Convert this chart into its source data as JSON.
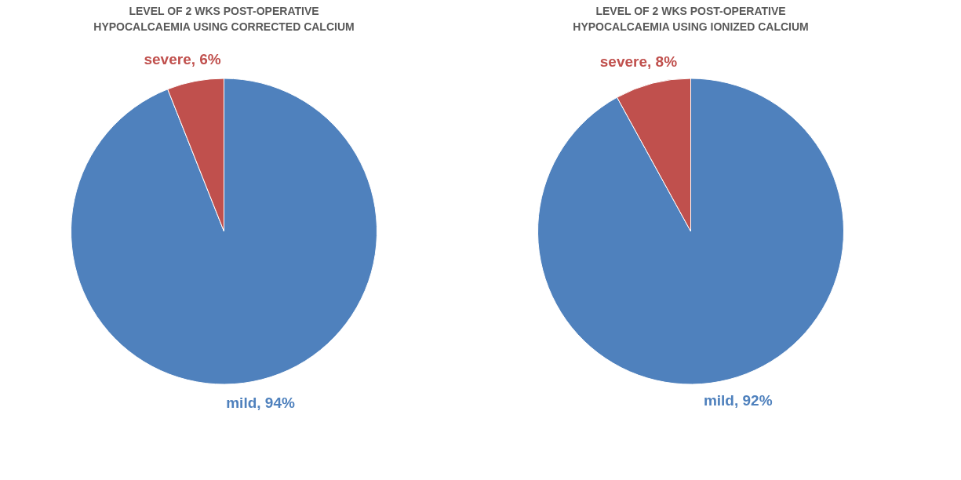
{
  "chart_data": [
    {
      "type": "pie",
      "title": "LEVEL OF 2 WKS POST-OPERATIVE HYPOCALCAEMIA USING CORRECTED CALCIUM",
      "categories": [
        "mild",
        "severe"
      ],
      "values": [
        94,
        6
      ],
      "colors": [
        "#4f81bd",
        "#c0504d"
      ],
      "value_labels": [
        ", 94%",
        ", 6%"
      ]
    },
    {
      "type": "pie",
      "title": "LEVEL OF 2 WKS POST-OPERATIVE HYPOCALCAEMIA USING IONIZED CALCIUM",
      "categories": [
        "mild",
        "severe"
      ],
      "values": [
        92,
        8
      ],
      "colors": [
        "#4f81bd",
        "#c0504d"
      ],
      "value_labels": [
        ", 92%",
        ", 8%"
      ]
    }
  ]
}
